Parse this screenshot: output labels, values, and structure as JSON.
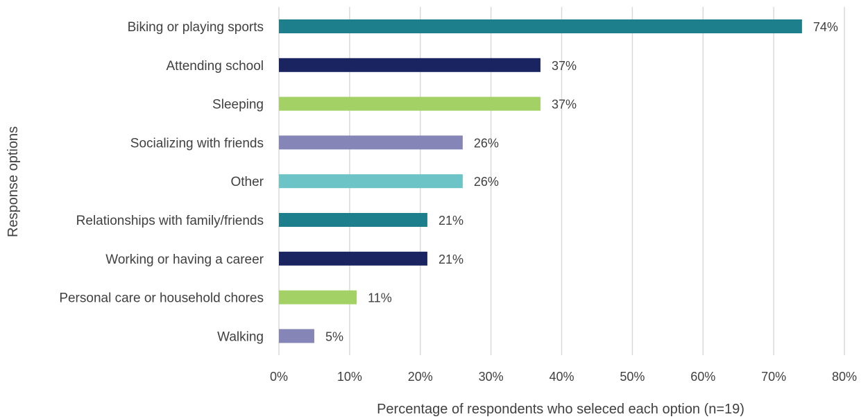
{
  "chart_data": {
    "type": "bar",
    "orientation": "horizontal",
    "categories": [
      "Biking or playing sports",
      "Attending school",
      "Sleeping",
      "Socializing with friends",
      "Other",
      "Relationships with family/friends",
      "Working or having a career",
      "Personal care or household chores",
      "Walking"
    ],
    "values": [
      74,
      37,
      37,
      26,
      26,
      21,
      21,
      11,
      5
    ],
    "data_labels": [
      "74%",
      "37%",
      "37%",
      "26%",
      "26%",
      "21%",
      "21%",
      "11%",
      "5%"
    ],
    "colors": [
      "#1e7f8c",
      "#1a2461",
      "#a3d165",
      "#8585b7",
      "#6cc4c7",
      "#1e7f8c",
      "#1a2461",
      "#a3d165",
      "#8585b7"
    ],
    "xlim": [
      0,
      80
    ],
    "xticks": [
      0,
      10,
      20,
      30,
      40,
      50,
      60,
      70,
      80
    ],
    "xtick_labels": [
      "0%",
      "10%",
      "20%",
      "30%",
      "40%",
      "50%",
      "60%",
      "70%",
      "80%"
    ],
    "xlabel": "Percentage of respondents who seleced each option (n=19)",
    "ylabel": "Response options",
    "grid": "vertical",
    "legend": "none"
  }
}
